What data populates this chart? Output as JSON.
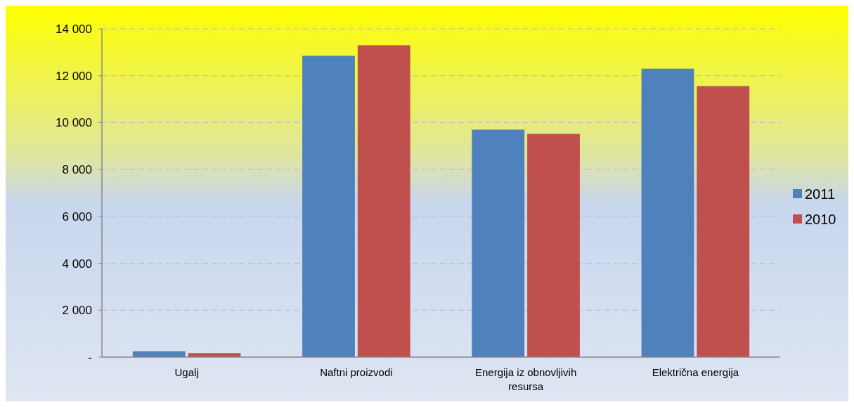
{
  "chart_data": {
    "type": "bar",
    "categories": [
      "Ugalj",
      "Naftni proizvodi",
      "Energija iz obnovljivih resursa",
      "Električna energija"
    ],
    "series": [
      {
        "name": "2011",
        "color": "#4f81bd",
        "values": [
          250,
          12850,
          9700,
          12300
        ]
      },
      {
        "name": "2010",
        "color": "#c0504d",
        "values": [
          170,
          13300,
          9520,
          11560
        ]
      }
    ],
    "ylim": [
      0,
      14000
    ],
    "yticks": [
      {
        "value": 0,
        "label": "-"
      },
      {
        "value": 2000,
        "label": "2 000"
      },
      {
        "value": 4000,
        "label": "4 000"
      },
      {
        "value": 6000,
        "label": "6 000"
      },
      {
        "value": 8000,
        "label": "8 000"
      },
      {
        "value": 10000,
        "label": "10 000"
      },
      {
        "value": 12000,
        "label": "12 000"
      },
      {
        "value": 14000,
        "label": "14 000"
      }
    ],
    "grid": "y",
    "legend": "right"
  }
}
